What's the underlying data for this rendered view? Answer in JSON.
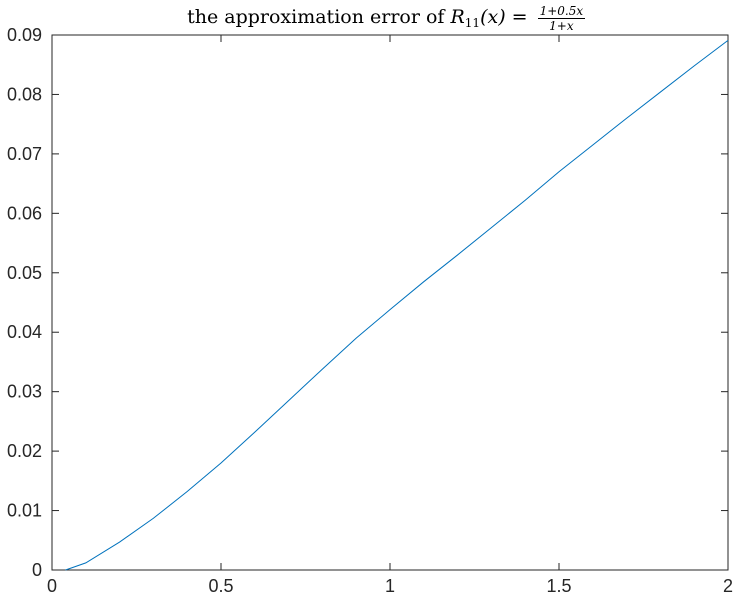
{
  "chart_data": {
    "type": "line",
    "title": {
      "prefix": "the approximation error of ",
      "func": "R",
      "sub": "11",
      "arg": "(x) = ",
      "numerator": "1+0.5x",
      "denominator": "1+x"
    },
    "xlabel": "",
    "ylabel": "",
    "xlim": [
      0,
      2
    ],
    "ylim": [
      0,
      0.09
    ],
    "xticks": [
      0,
      0.5,
      1,
      1.5,
      2
    ],
    "xtick_labels": [
      "0",
      "0.5",
      "1",
      "1.5",
      "2"
    ],
    "yticks": [
      0,
      0.01,
      0.02,
      0.03,
      0.04,
      0.05,
      0.06,
      0.07,
      0.08,
      0.09
    ],
    "ytick_labels": [
      "0",
      "0.01",
      "0.02",
      "0.03",
      "0.04",
      "0.05",
      "0.06",
      "0.07",
      "0.08",
      "0.09"
    ],
    "grid": false,
    "line_color": "#0072BD",
    "series": [
      {
        "x": [
          0.04,
          0.1,
          0.2,
          0.3,
          0.4,
          0.5,
          0.6,
          0.7,
          0.8,
          0.9,
          1.0,
          1.1,
          1.2,
          1.3,
          1.4,
          1.5,
          1.6,
          1.7,
          1.8,
          1.9,
          2.0
        ],
        "y": [
          0.0,
          0.0012,
          0.0047,
          0.0087,
          0.0132,
          0.018,
          0.0232,
          0.0285,
          0.0338,
          0.039,
          0.0438,
          0.0485,
          0.053,
          0.0576,
          0.0622,
          0.067,
          0.0715,
          0.076,
          0.0804,
          0.0848,
          0.0891
        ]
      }
    ]
  }
}
